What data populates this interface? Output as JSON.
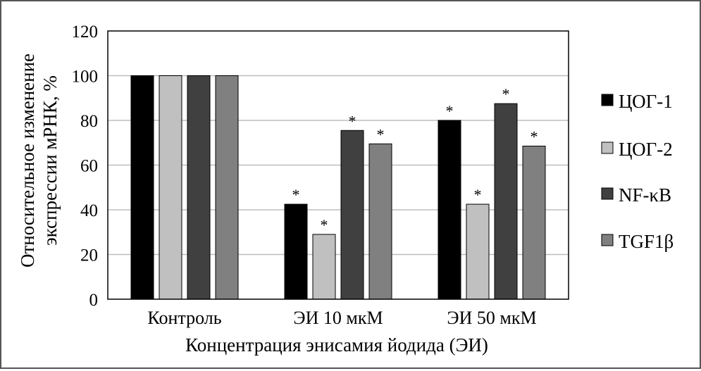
{
  "chart_data": {
    "type": "bar",
    "categories": [
      "Контроль",
      "ЭИ 10 мкМ",
      "ЭИ 50 мкМ"
    ],
    "series": [
      {
        "name": "ЦОГ-1",
        "color": "#000000",
        "values": [
          100,
          42.5,
          80
        ],
        "significant": [
          false,
          true,
          true
        ]
      },
      {
        "name": "ЦОГ-2",
        "color": "#c0c0c0",
        "values": [
          100,
          29,
          42.5
        ],
        "significant": [
          false,
          true,
          true
        ]
      },
      {
        "name": "NF-κB",
        "color": "#404040",
        "values": [
          100,
          75.5,
          87.5
        ],
        "significant": [
          false,
          true,
          true
        ]
      },
      {
        "name": "TGF1β",
        "color": "#808080",
        "values": [
          100,
          69.5,
          68.5
        ],
        "significant": [
          false,
          true,
          true
        ]
      }
    ],
    "significance_marker": "*",
    "xlabel": "Концентрация энисамия йодида (ЭИ)",
    "ylabel": [
      "Относительное изменение",
      "экспрессии мРНК, %"
    ],
    "ylim": [
      0,
      120
    ],
    "yticks": [
      "0",
      "20",
      "40",
      "60",
      "80",
      "100",
      "120"
    ],
    "grid": "horizontal",
    "legend": "right"
  }
}
